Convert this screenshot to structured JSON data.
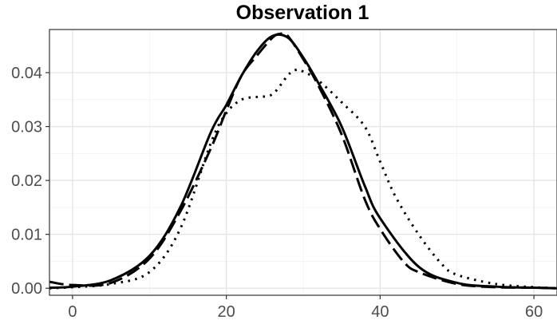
{
  "chart_data": {
    "type": "line",
    "title": "Observation 1",
    "xlabel": "",
    "ylabel": "",
    "xlim": [
      -3,
      63
    ],
    "ylim": [
      -0.0013,
      0.048
    ],
    "x_ticks": [
      0,
      20,
      40,
      60
    ],
    "x_tick_labels": [
      "0",
      "20",
      "40",
      "60"
    ],
    "y_ticks": [
      0.0,
      0.01,
      0.02,
      0.03,
      0.04
    ],
    "y_tick_labels": [
      "0.00",
      "0.01",
      "0.02",
      "0.03",
      "0.04"
    ],
    "grid": true,
    "series": [
      {
        "style": "solid",
        "x": [
          -3,
          0,
          5,
          10,
          14,
          18,
          20,
          22,
          24,
          26,
          28,
          30,
          32,
          35,
          38,
          40,
          45,
          50,
          55,
          60,
          63
        ],
        "y": [
          0.0001,
          0.0003,
          0.0015,
          0.006,
          0.015,
          0.029,
          0.034,
          0.0395,
          0.044,
          0.0468,
          0.0465,
          0.0428,
          0.038,
          0.03,
          0.019,
          0.013,
          0.004,
          0.001,
          0.0003,
          0.0001,
          0.0
        ]
      },
      {
        "style": "dashed",
        "x": [
          -3,
          0,
          5,
          10,
          14,
          18,
          20,
          22,
          24,
          26,
          27,
          28,
          30,
          32,
          35,
          38,
          40,
          43,
          45,
          50,
          55,
          60,
          63
        ],
        "y": [
          0.0012,
          0.0006,
          0.001,
          0.0055,
          0.0142,
          0.026,
          0.033,
          0.0395,
          0.0432,
          0.0465,
          0.0472,
          0.0468,
          0.0425,
          0.0375,
          0.0285,
          0.0165,
          0.011,
          0.005,
          0.003,
          0.0008,
          0.0002,
          0.0001,
          0.0
        ]
      },
      {
        "style": "dotted",
        "x": [
          -3,
          0,
          5,
          10,
          14,
          18,
          20,
          22,
          24,
          26,
          28,
          29,
          30,
          32,
          35,
          38,
          40,
          42,
          45,
          48,
          50,
          55,
          60,
          63
        ],
        "y": [
          0.0,
          0.0002,
          0.0008,
          0.003,
          0.011,
          0.027,
          0.0325,
          0.035,
          0.0355,
          0.036,
          0.0395,
          0.0405,
          0.0402,
          0.0385,
          0.0345,
          0.03,
          0.0235,
          0.017,
          0.01,
          0.0045,
          0.0025,
          0.0008,
          0.0002,
          0.0
        ]
      }
    ]
  }
}
